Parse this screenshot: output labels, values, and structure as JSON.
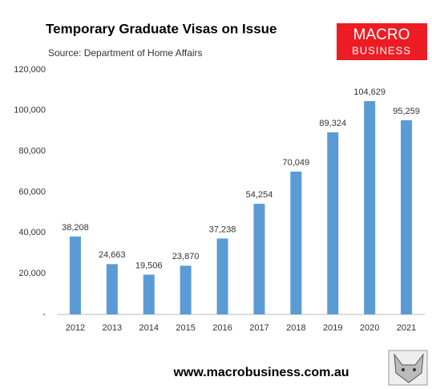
{
  "chart_data": {
    "type": "bar",
    "title": "Temporary Graduate Visas on Issue",
    "subtitle": "Source: Department of Home Affairs",
    "logo": [
      "MACRO",
      "BUSINESS"
    ],
    "footer": "www.macrobusiness.com.au",
    "categories": [
      "2012",
      "2013",
      "2014",
      "2015",
      "2016",
      "2017",
      "2018",
      "2019",
      "2020",
      "2021"
    ],
    "values": [
      38208,
      24663,
      19506,
      23870,
      37238,
      54254,
      70049,
      89324,
      104629,
      95259
    ],
    "value_labels": [
      "38,208",
      "24,663",
      "19,506",
      "23,870",
      "37,238",
      "54,254",
      "70,049",
      "89,324",
      "104,629",
      "95,259"
    ],
    "color": "#5b9bd5",
    "ylim": [
      0,
      120000
    ],
    "yticks": [
      {
        "value": 0,
        "label": "-"
      },
      {
        "value": 20000,
        "label": "20,000"
      },
      {
        "value": 40000,
        "label": "40,000"
      },
      {
        "value": 60000,
        "label": "60,000"
      },
      {
        "value": 80000,
        "label": "80,000"
      },
      {
        "value": 100000,
        "label": "100,000"
      },
      {
        "value": 120000,
        "label": "120,000"
      }
    ],
    "grid": false
  }
}
